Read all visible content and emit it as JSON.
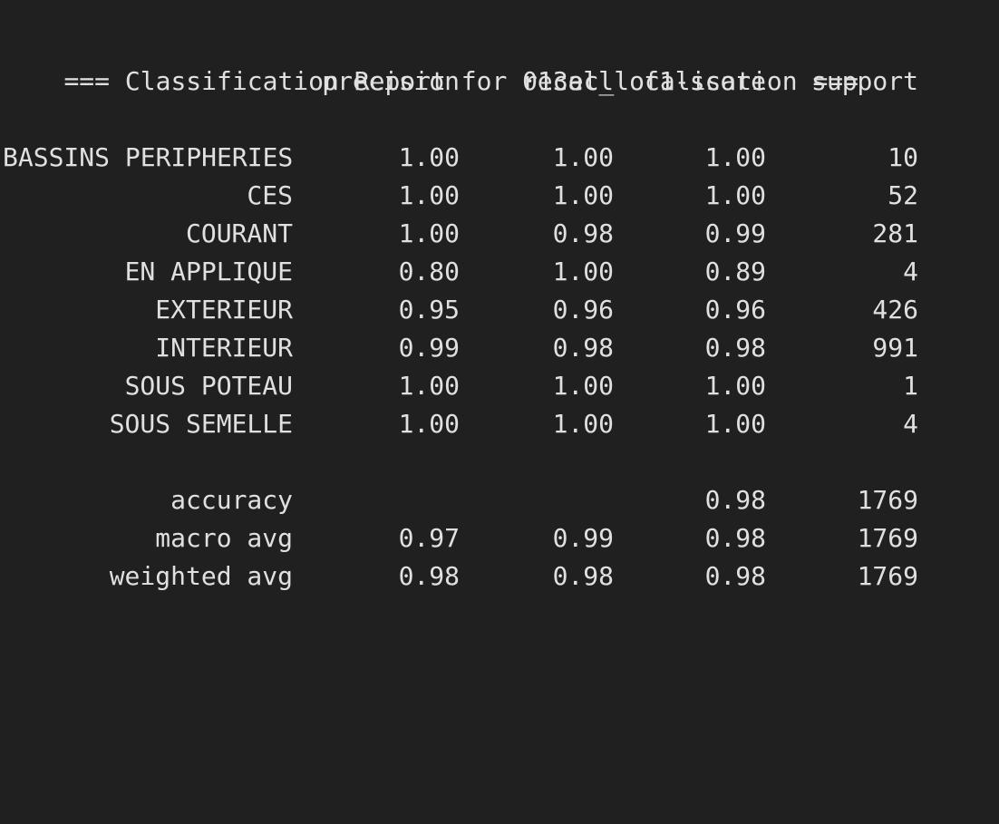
{
  "report": {
    "title": "=== Classification Report for 013ec_localisation ===",
    "headers": [
      "precision",
      "recall",
      "f1-score",
      "support"
    ],
    "rows": [
      {
        "label": "BASSINS PERIPHERIES",
        "precision": "1.00",
        "recall": "1.00",
        "f1": "1.00",
        "support": "10"
      },
      {
        "label": "CES",
        "precision": "1.00",
        "recall": "1.00",
        "f1": "1.00",
        "support": "52"
      },
      {
        "label": "COURANT",
        "precision": "1.00",
        "recall": "0.98",
        "f1": "0.99",
        "support": "281"
      },
      {
        "label": "EN APPLIQUE",
        "precision": "0.80",
        "recall": "1.00",
        "f1": "0.89",
        "support": "4"
      },
      {
        "label": "EXTERIEUR",
        "precision": "0.95",
        "recall": "0.96",
        "f1": "0.96",
        "support": "426"
      },
      {
        "label": "INTERIEUR",
        "precision": "0.99",
        "recall": "0.98",
        "f1": "0.98",
        "support": "991"
      },
      {
        "label": "SOUS POTEAU",
        "precision": "1.00",
        "recall": "1.00",
        "f1": "1.00",
        "support": "1"
      },
      {
        "label": "SOUS SEMELLE",
        "precision": "1.00",
        "recall": "1.00",
        "f1": "1.00",
        "support": "4"
      }
    ],
    "summary": [
      {
        "label": "accuracy",
        "precision": "",
        "recall": "",
        "f1": "0.98",
        "support": "1769"
      },
      {
        "label": "macro avg",
        "precision": "0.97",
        "recall": "0.99",
        "f1": "0.98",
        "support": "1769"
      },
      {
        "label": "weighted avg",
        "precision": "0.98",
        "recall": "0.98",
        "f1": "0.98",
        "support": "1769"
      }
    ]
  },
  "colors": {
    "background": "#202020",
    "text": "#e0e0e0"
  }
}
